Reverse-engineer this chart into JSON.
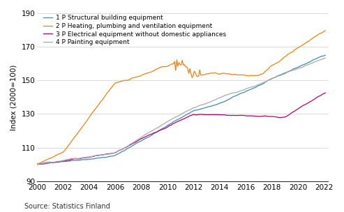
{
  "title": "",
  "ylabel": "Index (2000=100)",
  "source": "Source: Statistics Finland",
  "legend_labels": [
    "1 P Structural building equipment",
    "2 P Heating, plumbing and ventilation equipment",
    "3 P Electrical equipment without domestic appliances",
    "4 P Painting equipment"
  ],
  "colors": [
    "#3d8abf",
    "#f0820f",
    "#b8006e",
    "#aaaaaa"
  ],
  "ylim": [
    90,
    190
  ],
  "yticks": [
    90,
    110,
    130,
    150,
    170,
    190
  ],
  "xlim_start": 2000.0,
  "xlim_end": 2022.3,
  "xticks": [
    2000,
    2002,
    2004,
    2006,
    2008,
    2010,
    2012,
    2014,
    2016,
    2018,
    2020,
    2022
  ],
  "background_color": "#ffffff",
  "grid_color": "#cccccc"
}
